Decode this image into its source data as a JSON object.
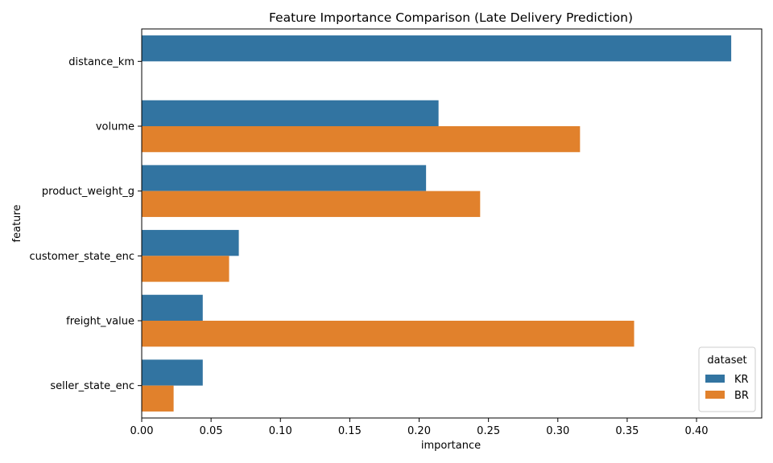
{
  "chart_data": {
    "type": "bar",
    "orientation": "horizontal",
    "title": "Feature Importance Comparison (Late Delivery Prediction)",
    "xlabel": "importance",
    "ylabel": "feature",
    "xlim": [
      0,
      0.447
    ],
    "xticks": [
      0.0,
      0.05,
      0.1,
      0.15,
      0.2,
      0.25,
      0.3,
      0.35,
      0.4
    ],
    "xtick_labels": [
      "0.00",
      "0.05",
      "0.10",
      "0.15",
      "0.20",
      "0.25",
      "0.30",
      "0.35",
      "0.40"
    ],
    "categories": [
      "distance_km",
      "volume",
      "product_weight_g",
      "customer_state_enc",
      "freight_value",
      "seller_state_enc"
    ],
    "series": [
      {
        "name": "KR",
        "color": "#3274a1",
        "values": [
          0.425,
          0.214,
          0.205,
          0.07,
          0.044,
          0.044
        ]
      },
      {
        "name": "BR",
        "color": "#e1812c",
        "values": [
          null,
          0.316,
          0.244,
          0.063,
          0.355,
          0.023
        ]
      }
    ],
    "legend": {
      "title": "dataset",
      "location": "lower-right"
    }
  }
}
